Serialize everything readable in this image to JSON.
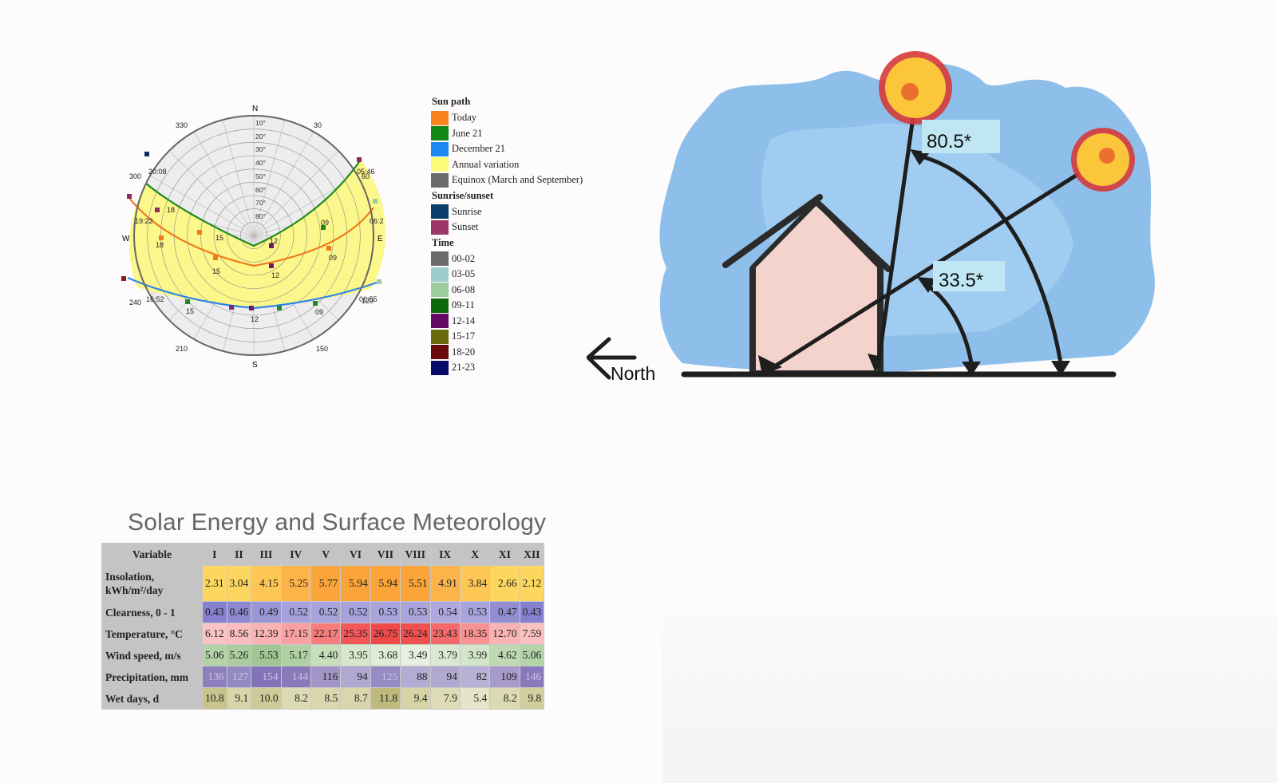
{
  "sunpath": {
    "compass": {
      "N": "N",
      "S": "S",
      "E": "E",
      "W": "W"
    },
    "azimuth_labels": [
      "30",
      "60",
      "120",
      "150",
      "210",
      "240",
      "300",
      "330"
    ],
    "altitude_labels": [
      "10°",
      "20°",
      "30°",
      "40°",
      "50°",
      "60°",
      "70°",
      "80°"
    ],
    "june_times": [
      "20:08",
      "18",
      "15",
      "12",
      "09",
      "05:46"
    ],
    "today_times": [
      "19:22",
      "18",
      "15",
      "12",
      "09",
      "06:2"
    ],
    "december_times": [
      "16:52",
      "15",
      "12",
      "09",
      "06:55"
    ],
    "colors": {
      "today": "#f07a1c",
      "june": "#1f8a1f",
      "december": "#2e86e8",
      "annual": "#fbf78a",
      "sunrise": "#0b2f66",
      "sunset": "#8f2a60"
    }
  },
  "legend": {
    "sections": [
      {
        "title": "Sun path",
        "items": [
          {
            "label": "Today",
            "color": "#f7821e"
          },
          {
            "label": "June 21",
            "color": "#138713"
          },
          {
            "label": "December 21",
            "color": "#1e88f5"
          },
          {
            "label": "Annual variation",
            "color": "#fbfb7a"
          },
          {
            "label": "Equinox (March and September)",
            "color": "#6b6b6b"
          }
        ]
      },
      {
        "title": "Sunrise/sunset",
        "items": [
          {
            "label": "Sunrise",
            "color": "#0a3d6a"
          },
          {
            "label": "Sunset",
            "color": "#9b3766"
          }
        ]
      },
      {
        "title": "Time",
        "items": [
          {
            "label": "00-02",
            "color": "#6a6a6a"
          },
          {
            "label": "03-05",
            "color": "#9ccccc"
          },
          {
            "label": "06-08",
            "color": "#9ccc9c"
          },
          {
            "label": "09-11",
            "color": "#0b6a0b"
          },
          {
            "label": "12-14",
            "color": "#640a64"
          },
          {
            "label": "15-17",
            "color": "#6a6a0a"
          },
          {
            "label": "18-20",
            "color": "#6a0a0a"
          },
          {
            "label": "21-23",
            "color": "#0a0a6a"
          }
        ]
      }
    ]
  },
  "sketch": {
    "angle_high": "80.5*",
    "angle_low": "33.5*",
    "direction": "North"
  },
  "table": {
    "title": "Solar Energy and Surface Meteorology",
    "header_variable": "Variable",
    "months": [
      "I",
      "II",
      "III",
      "IV",
      "V",
      "VI",
      "VII",
      "VIII",
      "IX",
      "X",
      "XI",
      "XII"
    ],
    "rows": [
      {
        "label": "Insolation, kWh/m²/day",
        "values": [
          "2.31",
          "3.04",
          "4.15",
          "5.25",
          "5.77",
          "5.94",
          "5.94",
          "5.51",
          "4.91",
          "3.84",
          "2.66",
          "2.12"
        ],
        "colors": [
          "#fdd660",
          "#fdd660",
          "#fdc655",
          "#fbb34a",
          "#faa43a",
          "#faa43a",
          "#faa43a",
          "#faa43a",
          "#fbb34a",
          "#fdc655",
          "#fdd660",
          "#fdd660"
        ],
        "text": "#222"
      },
      {
        "label": "Clearness, 0 - 1",
        "values": [
          "0.43",
          "0.46",
          "0.49",
          "0.52",
          "0.52",
          "0.52",
          "0.53",
          "0.53",
          "0.54",
          "0.53",
          "0.47",
          "0.43"
        ],
        "colors": [
          "#8580cf",
          "#8e88d0",
          "#9c95d6",
          "#a7a1dc",
          "#a7a1dc",
          "#a7a1dc",
          "#aaa4dd",
          "#aaa4dd",
          "#aea8df",
          "#aaa4dd",
          "#938dd2",
          "#8580cf"
        ],
        "text": "#222"
      },
      {
        "label": "Temperature, °C",
        "values": [
          "6.12",
          "8.56",
          "12.39",
          "17.15",
          "22.17",
          "25.35",
          "26.75",
          "26.24",
          "23.43",
          "18.35",
          "12.70",
          "7.59"
        ],
        "colors": [
          "#fbc4c4",
          "#fbbdbd",
          "#fab3b3",
          "#f9a0a0",
          "#f77c7c",
          "#f25858",
          "#ef4a4a",
          "#f05050",
          "#f46a6a",
          "#f79292",
          "#fab3b3",
          "#fbc0c0"
        ],
        "text": "#222"
      },
      {
        "label": "Wind speed, m/s",
        "values": [
          "5.06",
          "5.26",
          "5.53",
          "5.17",
          "4.40",
          "3.95",
          "3.68",
          "3.49",
          "3.79",
          "3.99",
          "4.62",
          "5.06"
        ],
        "colors": [
          "#b3d3a8",
          "#aacc9f",
          "#9fc693",
          "#aed0a3",
          "#c6dfba",
          "#d6e8cc",
          "#dfecd6",
          "#e6f0de",
          "#dbe9d2",
          "#d4e6ca",
          "#bfdab3",
          "#b3d3a8"
        ],
        "text": "#222"
      },
      {
        "label": "Precipitation, mm",
        "values": [
          "136",
          "127",
          "154",
          "144",
          "116",
          "94",
          "125",
          "88",
          "94",
          "82",
          "109",
          "146"
        ],
        "colors": [
          "#8e80bd",
          "#9589c2",
          "#8274b7",
          "#897bba",
          "#a195c8",
          "#b0a8d1",
          "#978bc3",
          "#b3acd3",
          "#b0a8d1",
          "#b8b1d6",
          "#a69bcb",
          "#887aba"
        ],
        "text": "#222",
        "light": [
          "136",
          "127",
          "154",
          "144",
          "125",
          "146"
        ]
      },
      {
        "label": "Wet days, d",
        "values": [
          "10.8",
          "9.1",
          "10.0",
          "8.2",
          "8.5",
          "8.7",
          "11.8",
          "9.4",
          "7.9",
          "5.4",
          "8.2",
          "9.8"
        ],
        "colors": [
          "#c8c48c",
          "#d8d5a8",
          "#cfcb98",
          "#dcdab2",
          "#dad7ad",
          "#d9d6ab",
          "#bfba7c",
          "#d6d3a4",
          "#dedcb6",
          "#e6e5cb",
          "#dcdab2",
          "#d2cf9e"
        ],
        "text": "#222"
      }
    ]
  }
}
